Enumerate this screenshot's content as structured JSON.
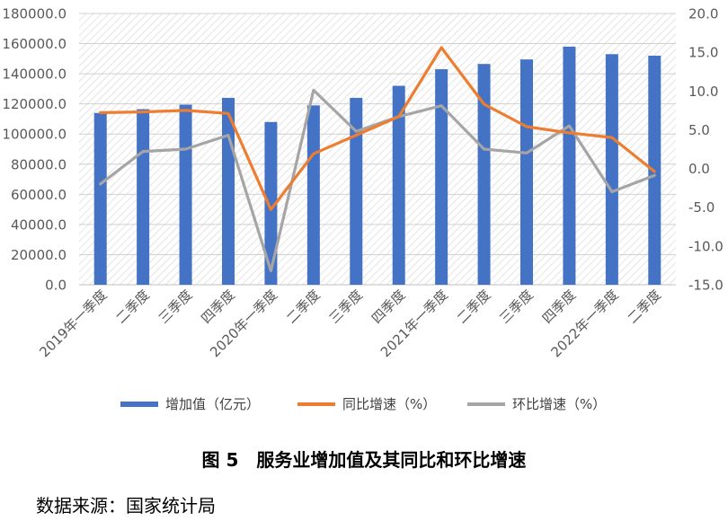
{
  "chart_data": {
    "type": "bar+line",
    "categories": [
      "2019年一季度",
      "二季度",
      "三季度",
      "四季度",
      "2020年一季度",
      "二季度",
      "三季度",
      "四季度",
      "2021年一季度",
      "二季度",
      "三季度",
      "四季度",
      "2022年一季度",
      "二季度"
    ],
    "series": [
      {
        "name": "增加值（亿元）",
        "type": "bar",
        "axis": "left",
        "color": "#4472C4",
        "values": [
          114000,
          116500,
          119500,
          124000,
          108000,
          119000,
          124000,
          132000,
          143000,
          146500,
          149500,
          158000,
          153000,
          152000
        ]
      },
      {
        "name": "同比增速（%）",
        "type": "line",
        "axis": "right",
        "color": "#ED7D31",
        "values": [
          7.2,
          7.3,
          7.5,
          7.1,
          -5.3,
          1.9,
          4.3,
          6.7,
          15.6,
          8.3,
          5.4,
          4.6,
          4.0,
          -0.4
        ]
      },
      {
        "name": "环比增速（%）",
        "type": "line",
        "axis": "right",
        "color": "#A5A5A5",
        "values": [
          -2.0,
          2.2,
          2.5,
          4.3,
          -13.2,
          10.1,
          4.8,
          6.7,
          8.1,
          2.5,
          2.0,
          5.5,
          -3.0,
          -0.9
        ]
      }
    ],
    "y_left": {
      "min": 0,
      "max": 180000,
      "step": 20000,
      "tick_labels": [
        "0.0",
        "20000.0",
        "40000.0",
        "60000.0",
        "80000.0",
        "100000.0",
        "120000.0",
        "140000.0",
        "160000.0",
        "180000.0"
      ]
    },
    "y_right": {
      "min": -15,
      "max": 20,
      "step": 5,
      "tick_labels": [
        "-15.0",
        "-10.0",
        "-5.0",
        "0.0",
        "5.0",
        "10.0",
        "15.0",
        "20.0"
      ]
    },
    "grid": "horizontal",
    "plot_background": "diagonal-hatch",
    "legend_position": "bottom",
    "title": "图 5　服务业增加值及其同比和环比增速"
  },
  "source_text": "数据来源：国家统计局",
  "colors": {
    "bar": "#4472C4",
    "yoy": "#ED7D31",
    "qoq": "#A5A5A5",
    "axis_text": "#595959"
  }
}
